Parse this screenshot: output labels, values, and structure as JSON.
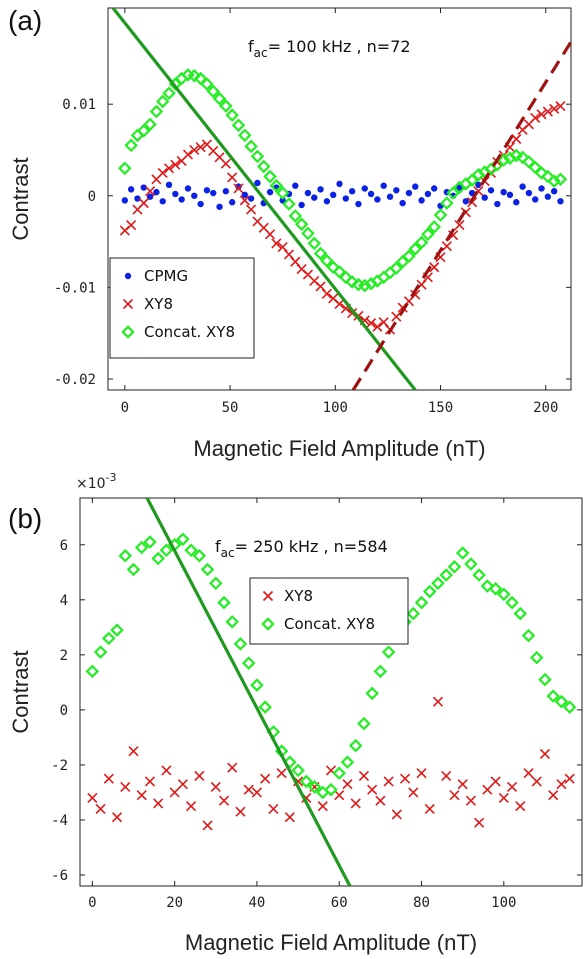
{
  "chart_data": [
    {
      "type": "scatter",
      "panel_label": "(a)",
      "annotation": {
        "prefix": "f",
        "subscript": "ac",
        "suffix": "= 100 kHz , n=72"
      },
      "xlabel": "Magnetic Field Amplitude (nT)",
      "ylabel": "Contrast",
      "xlim": [
        -8,
        212
      ],
      "ylim": [
        -0.0212,
        0.0205
      ],
      "xticks": [
        0,
        50,
        100,
        150,
        200
      ],
      "xtick_labels": [
        "0",
        "50",
        "100",
        "150",
        "200"
      ],
      "yticks": [
        -0.02,
        -0.01,
        0,
        0.01
      ],
      "ytick_labels": [
        "-0.02",
        "-0.01",
        "0",
        "0.01"
      ],
      "legend": {
        "placement": "bottom-left",
        "entries": [
          "CPMG",
          "XY8",
          "Concat. XY8"
        ]
      },
      "series": [
        {
          "name": "CPMG",
          "marker": "dot",
          "color": "#0a22e6",
          "x": [
            0,
            3,
            6,
            9,
            12,
            15,
            18,
            21,
            24,
            27,
            30,
            33,
            36,
            39,
            42,
            45,
            48,
            51,
            54,
            57,
            60,
            63,
            66,
            69,
            72,
            75,
            78,
            81,
            84,
            87,
            90,
            93,
            96,
            99,
            102,
            105,
            108,
            111,
            114,
            117,
            120,
            123,
            126,
            129,
            132,
            135,
            138,
            141,
            144,
            147,
            150,
            153,
            156,
            159,
            162,
            165,
            168,
            171,
            174,
            177,
            180,
            183,
            186,
            189,
            192,
            195,
            198,
            201,
            204,
            207
          ],
          "y": [
            -0.0005,
            0.0007,
            -0.0003,
            0.0009,
            -0.0001,
            0.0004,
            -0.0006,
            0.0012,
            0.0002,
            -0.0004,
            0.0008,
            0,
            -0.0009,
            0.0006,
            0.0003,
            -0.0012,
            0.0005,
            -0.0007,
            0.001,
            0.0001,
            -0.0003,
            0.0014,
            -0.0008,
            0.0004,
            0.0009,
            -0.0005,
            0.0002,
            0.0011,
            -0.001,
            0.0003,
            -0.0002,
            0.0007,
            -0.0006,
            0.0001,
            0.0013,
            -0.0003,
            0.0005,
            -0.0009,
            0.0008,
            0.0002,
            -0.0004,
            0.0011,
            -0.0001,
            0.0006,
            -0.0008,
            0.0003,
            0.001,
            -0.0005,
            0.0002,
            0.0008,
            -0.0011,
            0.0004,
            0,
            0.0009,
            -0.0006,
            0.0003,
            0.0012,
            -0.0002,
            0.0006,
            -0.0009,
            0.0004,
            0.0001,
            -0.0007,
            0.001,
            0.0003,
            -0.0004,
            0.0008,
            -0.0001,
            0.0005,
            -0.0006
          ]
        },
        {
          "name": "XY8",
          "marker": "x",
          "color": "#e01818",
          "x": [
            0,
            3,
            6,
            9,
            12,
            15,
            18,
            21,
            24,
            27,
            30,
            33,
            36,
            39,
            42,
            45,
            48,
            51,
            54,
            57,
            60,
            63,
            66,
            69,
            72,
            75,
            78,
            81,
            84,
            87,
            90,
            93,
            96,
            99,
            102,
            105,
            108,
            111,
            114,
            117,
            120,
            123,
            126,
            129,
            132,
            135,
            138,
            141,
            144,
            147,
            150,
            153,
            156,
            159,
            162,
            165,
            168,
            171,
            174,
            177,
            180,
            183,
            186,
            189,
            192,
            195,
            198,
            201,
            204,
            207
          ],
          "y": [
            -0.0038,
            -0.0032,
            -0.0015,
            -0.0008,
            0.0005,
            0.0018,
            0.0025,
            0.003,
            0.0034,
            0.0038,
            0.0045,
            0.005,
            0.0053,
            0.0056,
            0.0049,
            0.0042,
            0.0035,
            0.002,
            0.0008,
            -0.0005,
            -0.0015,
            -0.0028,
            -0.0035,
            -0.0042,
            -0.0052,
            -0.0056,
            -0.0064,
            -0.0072,
            -0.008,
            -0.0086,
            -0.0093,
            -0.0099,
            -0.0107,
            -0.0112,
            -0.0118,
            -0.0123,
            -0.0128,
            -0.0131,
            -0.0136,
            -0.0139,
            -0.0143,
            -0.0138,
            -0.0146,
            -0.0132,
            -0.0122,
            -0.0115,
            -0.0108,
            -0.0097,
            -0.0089,
            -0.0078,
            -0.0067,
            -0.0055,
            -0.0043,
            -0.0032,
            -0.0018,
            -0.0007,
            0.0005,
            0.0016,
            0.0025,
            0.0037,
            0.0044,
            0.0053,
            0.0062,
            0.0072,
            0.0078,
            0.0085,
            0.0089,
            0.0092,
            0.0095,
            0.0098
          ]
        },
        {
          "name": "Concat. XY8",
          "marker": "diamond",
          "color": "#22ee22",
          "x": [
            0,
            3,
            6,
            9,
            12,
            15,
            18,
            21,
            24,
            27,
            30,
            33,
            36,
            39,
            42,
            45,
            48,
            51,
            54,
            57,
            60,
            63,
            66,
            69,
            72,
            75,
            78,
            81,
            84,
            87,
            90,
            93,
            96,
            99,
            102,
            105,
            108,
            111,
            114,
            117,
            120,
            123,
            126,
            129,
            132,
            135,
            138,
            141,
            144,
            147,
            150,
            153,
            156,
            159,
            162,
            165,
            168,
            171,
            174,
            177,
            180,
            183,
            186,
            189,
            192,
            195,
            198,
            201,
            204,
            207
          ],
          "y": [
            0.003,
            0.0055,
            0.0066,
            0.0071,
            0.0078,
            0.0092,
            0.0103,
            0.0112,
            0.0122,
            0.0128,
            0.0132,
            0.0131,
            0.0128,
            0.0122,
            0.0114,
            0.0106,
            0.0098,
            0.0088,
            0.0077,
            0.0066,
            0.0054,
            0.0043,
            0.0032,
            0.0021,
            0.0011,
            0.0003,
            -0.0009,
            -0.0022,
            -0.0031,
            -0.0041,
            -0.0052,
            -0.0063,
            -0.0071,
            -0.0078,
            -0.0083,
            -0.0089,
            -0.0094,
            -0.0097,
            -0.0098,
            -0.0096,
            -0.0093,
            -0.0089,
            -0.0084,
            -0.0079,
            -0.0072,
            -0.0066,
            -0.0058,
            -0.0051,
            -0.0042,
            -0.0034,
            -0.0021,
            -0.0008,
            0.0003,
            0.0009,
            0.0013,
            0.0017,
            0.0023,
            0.0026,
            0.0029,
            0.0034,
            0.0039,
            0.0041,
            0.0044,
            0.0042,
            0.0037,
            0.0031,
            0.0025,
            0.0021,
            0.0016,
            0.0018
          ]
        }
      ],
      "lines": [
        {
          "style": "solid",
          "color": "#1e9a1e",
          "x": [
            -5.6,
            138
          ],
          "y": [
            0.0205,
            -0.0212
          ]
        },
        {
          "style": "dashed",
          "color": "#a01212",
          "x": [
            108.5,
            212
          ],
          "y": [
            -0.0212,
            0.0168
          ]
        }
      ]
    },
    {
      "type": "scatter",
      "panel_label": "(b)",
      "annotation": {
        "prefix": "f",
        "subscript": "ac",
        "suffix": "= 250 kHz , n=584"
      },
      "exponent_label": "×10",
      "exponent_power": "-3",
      "xlabel": "Magnetic Field Amplitude (nT)",
      "ylabel": "Contrast",
      "xlim": [
        -3,
        119
      ],
      "ylim": [
        -6.4,
        7.7
      ],
      "xticks": [
        0,
        20,
        40,
        60,
        80,
        100
      ],
      "xtick_labels": [
        "0",
        "20",
        "40",
        "60",
        "80",
        "100"
      ],
      "yticks": [
        -6,
        -4,
        -2,
        0,
        2,
        4,
        6
      ],
      "ytick_labels": [
        "-6",
        "-4",
        "-2",
        "0",
        "2",
        "4",
        "6"
      ],
      "legend": {
        "placement": "top-right",
        "entries": [
          "XY8",
          "Concat. XY8"
        ]
      },
      "series": [
        {
          "name": "XY8",
          "marker": "x",
          "color": "#e01818",
          "x": [
            0,
            2,
            4,
            6,
            8,
            10,
            12,
            14,
            16,
            18,
            20,
            22,
            24,
            26,
            28,
            30,
            32,
            34,
            36,
            38,
            40,
            42,
            44,
            46,
            48,
            50,
            52,
            54,
            56,
            58,
            60,
            62,
            64,
            66,
            68,
            70,
            72,
            74,
            76,
            78,
            80,
            82,
            84,
            86,
            88,
            90,
            92,
            94,
            96,
            98,
            100,
            102,
            104,
            106,
            108,
            110,
            112,
            114,
            116
          ],
          "y": [
            -3.2,
            -3.6,
            -2.5,
            -3.9,
            -2.8,
            -1.5,
            -3.1,
            -2.6,
            -3.4,
            -2.2,
            -3,
            -2.7,
            -3.5,
            -2.4,
            -4.2,
            -2.8,
            -3.3,
            -2.1,
            -3.7,
            -2.9,
            -3,
            -2.5,
            -3.6,
            -2.3,
            -3.9,
            -2.6,
            -3.2,
            -2.8,
            -3.5,
            -2.2,
            -3.1,
            -2.7,
            -3.4,
            -2.4,
            -2.9,
            -3.3,
            -2.6,
            -3.8,
            -2.5,
            -3,
            -2.3,
            -3.6,
            0.3,
            -2.4,
            -3.1,
            -2.7,
            -3.3,
            -4.1,
            -2.9,
            -2.6,
            -3.2,
            -2.8,
            -3.5,
            -2.3,
            -2.6,
            -1.6,
            -3.1,
            -2.7,
            -2.5
          ]
        },
        {
          "name": "Concat. XY8",
          "marker": "diamond",
          "color": "#22ee22",
          "x": [
            0,
            2,
            4,
            6,
            8,
            10,
            12,
            14,
            16,
            18,
            20,
            22,
            24,
            26,
            28,
            30,
            32,
            34,
            36,
            38,
            40,
            42,
            44,
            46,
            48,
            50,
            52,
            54,
            56,
            58,
            60,
            62,
            64,
            66,
            68,
            70,
            72,
            74,
            76,
            78,
            80,
            82,
            84,
            86,
            88,
            90,
            92,
            94,
            96,
            98,
            100,
            102,
            104,
            106,
            108,
            110,
            112,
            114,
            116
          ],
          "y": [
            1.4,
            2.1,
            2.6,
            2.9,
            5.6,
            5.1,
            5.9,
            6.1,
            5.5,
            5.8,
            6,
            6.2,
            5.8,
            5.6,
            5.1,
            4.6,
            3.9,
            3.2,
            2.4,
            1.7,
            0.9,
            0.1,
            -0.8,
            -1.5,
            -1.9,
            -2.2,
            -2.6,
            -2.8,
            -3,
            -2.9,
            -2.3,
            -1.9,
            -1.3,
            -0.5,
            0.6,
            1.4,
            2.1,
            2.8,
            3.2,
            3.5,
            3.9,
            4.3,
            4.6,
            4.9,
            5.2,
            5.7,
            5.3,
            4.9,
            4.5,
            4.4,
            4.2,
            3.9,
            3.5,
            2.7,
            1.9,
            1.1,
            0.5,
            0.3,
            0.1
          ]
        }
      ],
      "lines": [
        {
          "style": "solid",
          "color": "#1e9a1e",
          "x": [
            13.3,
            62.6
          ],
          "y": [
            7.7,
            -6.4
          ]
        }
      ]
    }
  ]
}
